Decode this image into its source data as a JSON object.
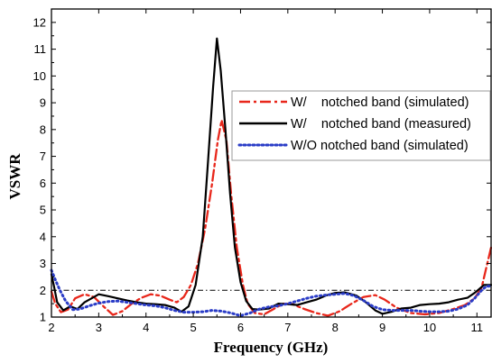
{
  "chart_data": {
    "type": "line",
    "xlabel": "Frequency (GHz)",
    "ylabel": "VSWR",
    "xlim": [
      2,
      11.3
    ],
    "ylim": [
      1,
      12.5
    ],
    "x_ticks": [
      "2",
      "3",
      "4",
      "5",
      "6",
      "7",
      "8",
      "9",
      "10",
      "11"
    ],
    "y_ticks": [
      "1",
      "2",
      "3",
      "4",
      "5",
      "6",
      "7",
      "8",
      "9",
      "10",
      "11",
      "12"
    ],
    "legend_position": "top-right",
    "grid": false,
    "reference_line": {
      "y": 2,
      "style": "dash-dot",
      "color": "#000000"
    },
    "series": [
      {
        "name": "W/    notched band (simulated)",
        "color": "#e8271b",
        "style": "dash-dot",
        "points": [
          [
            2.0,
            1.95
          ],
          [
            2.08,
            1.5
          ],
          [
            2.2,
            1.18
          ],
          [
            2.35,
            1.28
          ],
          [
            2.5,
            1.7
          ],
          [
            2.7,
            1.85
          ],
          [
            2.9,
            1.75
          ],
          [
            3.1,
            1.4
          ],
          [
            3.3,
            1.08
          ],
          [
            3.5,
            1.22
          ],
          [
            3.7,
            1.5
          ],
          [
            3.9,
            1.72
          ],
          [
            4.1,
            1.85
          ],
          [
            4.3,
            1.8
          ],
          [
            4.5,
            1.65
          ],
          [
            4.65,
            1.55
          ],
          [
            4.8,
            1.75
          ],
          [
            4.95,
            2.2
          ],
          [
            5.1,
            3.0
          ],
          [
            5.25,
            4.3
          ],
          [
            5.4,
            6.0
          ],
          [
            5.52,
            7.6
          ],
          [
            5.6,
            8.35
          ],
          [
            5.7,
            7.6
          ],
          [
            5.8,
            5.6
          ],
          [
            5.92,
            3.6
          ],
          [
            6.05,
            2.2
          ],
          [
            6.15,
            1.5
          ],
          [
            6.3,
            1.15
          ],
          [
            6.5,
            1.1
          ],
          [
            6.7,
            1.3
          ],
          [
            6.9,
            1.5
          ],
          [
            7.1,
            1.48
          ],
          [
            7.35,
            1.3
          ],
          [
            7.6,
            1.15
          ],
          [
            7.85,
            1.05
          ],
          [
            8.1,
            1.22
          ],
          [
            8.35,
            1.5
          ],
          [
            8.6,
            1.75
          ],
          [
            8.85,
            1.82
          ],
          [
            9.05,
            1.65
          ],
          [
            9.3,
            1.35
          ],
          [
            9.6,
            1.15
          ],
          [
            9.9,
            1.1
          ],
          [
            10.2,
            1.15
          ],
          [
            10.5,
            1.3
          ],
          [
            10.75,
            1.45
          ],
          [
            10.95,
            1.7
          ],
          [
            11.1,
            2.1
          ],
          [
            11.22,
            3.0
          ],
          [
            11.3,
            3.6
          ]
        ]
      },
      {
        "name": "W/    notched band (measured)",
        "color": "#000000",
        "style": "solid",
        "points": [
          [
            2.0,
            2.6
          ],
          [
            2.06,
            2.1
          ],
          [
            2.12,
            1.55
          ],
          [
            2.25,
            1.25
          ],
          [
            2.4,
            1.4
          ],
          [
            2.55,
            1.3
          ],
          [
            2.7,
            1.55
          ],
          [
            2.85,
            1.7
          ],
          [
            3.0,
            1.85
          ],
          [
            3.2,
            1.78
          ],
          [
            3.4,
            1.7
          ],
          [
            3.6,
            1.62
          ],
          [
            3.8,
            1.55
          ],
          [
            4.0,
            1.5
          ],
          [
            4.2,
            1.48
          ],
          [
            4.4,
            1.45
          ],
          [
            4.6,
            1.35
          ],
          [
            4.75,
            1.2
          ],
          [
            4.9,
            1.4
          ],
          [
            5.05,
            2.2
          ],
          [
            5.2,
            4.0
          ],
          [
            5.3,
            6.5
          ],
          [
            5.42,
            9.6
          ],
          [
            5.5,
            11.4
          ],
          [
            5.58,
            10.2
          ],
          [
            5.68,
            8.0
          ],
          [
            5.78,
            5.6
          ],
          [
            5.88,
            3.6
          ],
          [
            6.0,
            2.3
          ],
          [
            6.12,
            1.6
          ],
          [
            6.25,
            1.3
          ],
          [
            6.4,
            1.28
          ],
          [
            6.6,
            1.32
          ],
          [
            6.8,
            1.5
          ],
          [
            7.0,
            1.48
          ],
          [
            7.2,
            1.45
          ],
          [
            7.4,
            1.55
          ],
          [
            7.6,
            1.65
          ],
          [
            7.8,
            1.8
          ],
          [
            8.0,
            1.9
          ],
          [
            8.2,
            1.92
          ],
          [
            8.45,
            1.8
          ],
          [
            8.65,
            1.55
          ],
          [
            8.85,
            1.25
          ],
          [
            9.0,
            1.12
          ],
          [
            9.2,
            1.2
          ],
          [
            9.4,
            1.32
          ],
          [
            9.6,
            1.35
          ],
          [
            9.8,
            1.45
          ],
          [
            10.0,
            1.48
          ],
          [
            10.2,
            1.5
          ],
          [
            10.4,
            1.55
          ],
          [
            10.6,
            1.65
          ],
          [
            10.8,
            1.72
          ],
          [
            10.95,
            1.9
          ],
          [
            11.05,
            2.05
          ],
          [
            11.15,
            2.2
          ],
          [
            11.3,
            2.2
          ]
        ]
      },
      {
        "name": "W/O notched band (simulated)",
        "color": "#2a3cc7",
        "style": "dotted",
        "points": [
          [
            2.0,
            2.75
          ],
          [
            2.08,
            2.4
          ],
          [
            2.18,
            2.0
          ],
          [
            2.3,
            1.6
          ],
          [
            2.45,
            1.28
          ],
          [
            2.6,
            1.3
          ],
          [
            2.8,
            1.42
          ],
          [
            3.0,
            1.52
          ],
          [
            3.2,
            1.58
          ],
          [
            3.4,
            1.6
          ],
          [
            3.6,
            1.55
          ],
          [
            3.8,
            1.5
          ],
          [
            4.0,
            1.45
          ],
          [
            4.2,
            1.42
          ],
          [
            4.4,
            1.35
          ],
          [
            4.6,
            1.25
          ],
          [
            4.8,
            1.18
          ],
          [
            5.0,
            1.18
          ],
          [
            5.2,
            1.2
          ],
          [
            5.4,
            1.25
          ],
          [
            5.6,
            1.22
          ],
          [
            5.8,
            1.15
          ],
          [
            6.0,
            1.05
          ],
          [
            6.2,
            1.15
          ],
          [
            6.4,
            1.3
          ],
          [
            6.6,
            1.38
          ],
          [
            6.8,
            1.42
          ],
          [
            7.0,
            1.5
          ],
          [
            7.2,
            1.6
          ],
          [
            7.4,
            1.7
          ],
          [
            7.6,
            1.78
          ],
          [
            7.8,
            1.82
          ],
          [
            8.0,
            1.85
          ],
          [
            8.2,
            1.88
          ],
          [
            8.4,
            1.8
          ],
          [
            8.6,
            1.62
          ],
          [
            8.8,
            1.4
          ],
          [
            9.0,
            1.28
          ],
          [
            9.2,
            1.25
          ],
          [
            9.4,
            1.25
          ],
          [
            9.6,
            1.25
          ],
          [
            9.8,
            1.22
          ],
          [
            10.0,
            1.2
          ],
          [
            10.2,
            1.2
          ],
          [
            10.4,
            1.22
          ],
          [
            10.6,
            1.3
          ],
          [
            10.8,
            1.45
          ],
          [
            10.95,
            1.7
          ],
          [
            11.1,
            2.0
          ],
          [
            11.2,
            2.15
          ],
          [
            11.3,
            2.15
          ]
        ]
      }
    ]
  }
}
